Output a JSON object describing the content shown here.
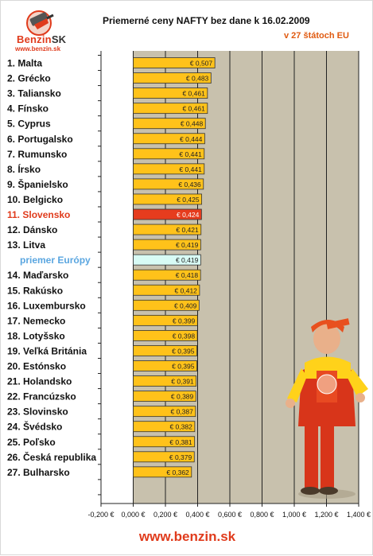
{
  "header": {
    "logo_name": "Benzin",
    "logo_suffix": "SK",
    "logo_url": "www.benzin.sk",
    "title": "Priemerné ceny NAFTY bez dane k 16.02.2009",
    "subtitle": "v 27 štátoch EU"
  },
  "footer": {
    "url": "www.benzin.sk"
  },
  "colors": {
    "bar": "#ffc21a",
    "bar_highlight": "#e63c1e",
    "bar_average": "#d8fbf5",
    "label_highlight": "#e03b1c",
    "label_average": "#5aa6e0",
    "plot_background": "#c8c1ad"
  },
  "chart_data": {
    "type": "bar",
    "orientation": "horizontal",
    "title": "Priemerné ceny NAFTY bez dane k 16.02.2009",
    "subtitle": "v 27 štátoch EU",
    "xlim": [
      -0.2,
      1.4
    ],
    "xticks": [
      "-0,200 €",
      "0,000 €",
      "0,200 €",
      "0,400 €",
      "0,600 €",
      "0,800 €",
      "1,000 €",
      "1,200 €",
      "1,400 €"
    ],
    "grid": true,
    "categories": [
      "1. Malta",
      "2. Grécko",
      "3. Taliansko",
      "4. Fínsko",
      "5. Cyprus",
      "6. Portugalsko",
      "7. Rumunsko",
      "8. Írsko",
      "9. Španielsko",
      "10. Belgicko",
      "11. Slovensko",
      "12. Dánsko",
      "13. Litva",
      "priemer Európy",
      "14. Maďarsko",
      "15. Rakúsko",
      "16. Luxembursko",
      "17. Nemecko",
      "18. Lotyšsko",
      "19. Veľká Británia",
      "20. Estónsko",
      "21. Holandsko",
      "22. Francúzsko",
      "23. Slovinsko",
      "24. Švédsko",
      "25. Poľsko",
      "26. Česká republika",
      "27. Bulharsko"
    ],
    "values": [
      0.507,
      0.483,
      0.461,
      0.461,
      0.448,
      0.444,
      0.441,
      0.441,
      0.436,
      0.425,
      0.424,
      0.421,
      0.419,
      0.419,
      0.418,
      0.412,
      0.409,
      0.399,
      0.398,
      0.395,
      0.395,
      0.391,
      0.389,
      0.387,
      0.382,
      0.381,
      0.379,
      0.362
    ],
    "value_labels": [
      "€ 0,507",
      "€ 0,483",
      "€ 0,461",
      "€ 0,461",
      "€ 0,448",
      "€ 0,444",
      "€ 0,441",
      "€ 0,441",
      "€ 0,436",
      "€ 0,425",
      "€ 0,424",
      "€ 0,421",
      "€ 0,419",
      "€ 0,419",
      "€ 0,418",
      "€ 0,412",
      "€ 0,409",
      "€ 0,399",
      "€ 0,398",
      "€ 0,395",
      "€ 0,395",
      "€ 0,391",
      "€ 0,389",
      "€ 0,387",
      "€ 0,382",
      "€ 0,381",
      "€ 0,379",
      "€ 0,362"
    ],
    "highlight_category": "11. Slovensko",
    "average_category": "priemer Európy"
  }
}
